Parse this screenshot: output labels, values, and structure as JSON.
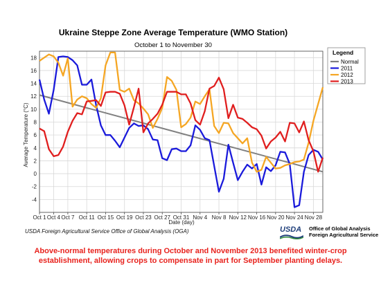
{
  "chart_data": {
    "type": "line",
    "title": "Ukraine Steppe Zone Average Temperature (WMO Station)",
    "subtitle": "October 1 to November 30",
    "xlabel": "Date (day)",
    "ylabel": "Average Temperature (°C)",
    "ylim": [
      -6,
      19
    ],
    "yticks": [
      "-4",
      "-2",
      "0",
      "2",
      "4",
      "6",
      "8",
      "10",
      "12",
      "14",
      "16",
      "18"
    ],
    "ytick_values": [
      -4,
      -2,
      0,
      2,
      4,
      6,
      8,
      10,
      12,
      14,
      16,
      18
    ],
    "x_tick_labels": [
      "Oct 1",
      "Oct 4",
      "Oct 7",
      "Oct 11",
      "Oct 15",
      "Oct 19",
      "Oct 23",
      "Oct 27",
      "Oct 31",
      "Nov 4",
      "Nov 8",
      "Nov 12",
      "Nov 16",
      "Nov 20",
      "Nov 24",
      "Nov 28"
    ],
    "x_tick_days": [
      1,
      4,
      7,
      11,
      15,
      19,
      23,
      27,
      31,
      35,
      39,
      43,
      47,
      51,
      55,
      59
    ],
    "grid": true,
    "legend_title": "Legend",
    "legend_position": "top-right",
    "series": [
      {
        "name": "Normal",
        "color": "#808080",
        "x": [
          1,
          61
        ],
        "y": [
          12.2,
          0.3
        ]
      },
      {
        "name": "2011",
        "color": "#1a1adb",
        "x": [
          1,
          2,
          3,
          4,
          5,
          6,
          7,
          8,
          9,
          10,
          11,
          12,
          13,
          14,
          15,
          16,
          17,
          18,
          19,
          20,
          21,
          22,
          23,
          24,
          25,
          26,
          27,
          28,
          29,
          30,
          31,
          32,
          33,
          34,
          35,
          36,
          37,
          38,
          39,
          40,
          41,
          42,
          43,
          44,
          45,
          46,
          47,
          48,
          49,
          50,
          51,
          52,
          53,
          54,
          55,
          56,
          57,
          58,
          59,
          60,
          61
        ],
        "y": [
          14.6,
          11.5,
          9.3,
          13.0,
          18.1,
          18.2,
          18.1,
          17.6,
          16.8,
          13.8,
          13.8,
          14.6,
          10.6,
          7.5,
          6.0,
          6.0,
          5.1,
          4.1,
          5.6,
          7.1,
          7.8,
          7.4,
          7.5,
          6.9,
          5.3,
          5.2,
          2.4,
          2.1,
          3.8,
          3.9,
          3.5,
          3.5,
          4.4,
          7.5,
          6.8,
          5.5,
          5.2,
          1.2,
          -2.8,
          -0.8,
          4.5,
          1.7,
          -1.0,
          0.3,
          1.4,
          0.8,
          1.5,
          -1.7,
          1.0,
          0.4,
          1.3,
          3.4,
          3.3,
          1.5,
          -5.2,
          -4.9,
          0.3,
          2.9,
          3.7,
          3.4,
          2.2
        ]
      },
      {
        "name": "2012",
        "color": "#f5a623",
        "x": [
          1,
          2,
          3,
          4,
          5,
          6,
          7,
          8,
          9,
          10,
          11,
          12,
          13,
          14,
          15,
          16,
          17,
          18,
          19,
          20,
          21,
          22,
          23,
          24,
          25,
          26,
          27,
          28,
          29,
          30,
          31,
          32,
          33,
          34,
          35,
          36,
          37,
          38,
          39,
          40,
          41,
          42,
          43,
          44,
          45,
          46,
          47,
          48,
          49,
          50,
          51,
          52,
          53,
          54,
          55,
          56,
          57,
          58,
          59,
          60,
          61
        ],
        "y": [
          17.5,
          18.0,
          18.5,
          18.2,
          17.2,
          15.2,
          17.9,
          10.4,
          11.5,
          12.0,
          11.7,
          10.8,
          10.2,
          11.7,
          16.8,
          18.8,
          18.8,
          13.0,
          12.7,
          13.2,
          11.4,
          10.9,
          10.1,
          9.2,
          7.1,
          8.5,
          10.2,
          15.0,
          14.4,
          13.0,
          7.2,
          7.7,
          8.7,
          11.2,
          10.8,
          12.0,
          13.1,
          7.4,
          6.3,
          7.9,
          7.8,
          6.3,
          5.5,
          4.7,
          5.5,
          1.7,
          0.3,
          0.6,
          2.6,
          1.7,
          0.8,
          0.9,
          1.3,
          1.5,
          1.8,
          1.9,
          2.2,
          4.8,
          8.2,
          10.8,
          13.4
        ]
      },
      {
        "name": "2013",
        "color": "#e01e1e",
        "x": [
          1,
          2,
          3,
          4,
          5,
          6,
          7,
          8,
          9,
          10,
          11,
          12,
          13,
          14,
          15,
          16,
          17,
          18,
          19,
          20,
          21,
          22,
          23,
          24,
          25,
          26,
          27,
          28,
          29,
          30,
          31,
          32,
          33,
          34,
          35,
          36,
          37,
          38,
          39,
          40,
          41,
          42,
          43,
          44,
          45,
          46,
          47,
          48,
          49,
          50,
          51,
          52,
          53,
          54,
          55,
          56,
          57,
          58,
          59,
          60,
          61
        ],
        "y": [
          7.0,
          6.6,
          3.8,
          2.7,
          2.9,
          4.2,
          6.5,
          8.2,
          9.4,
          9.2,
          11.2,
          11.3,
          11.4,
          10.5,
          12.6,
          12.7,
          12.7,
          12.4,
          10.6,
          7.6,
          10.3,
          13.2,
          6.4,
          7.8,
          8.5,
          9.3,
          10.7,
          12.7,
          12.7,
          12.7,
          12.3,
          12.3,
          10.9,
          8.3,
          7.6,
          9.7,
          13.2,
          13.6,
          14.9,
          13.1,
          8.6,
          10.7,
          8.7,
          8.5,
          7.9,
          7.2,
          6.9,
          5.9,
          3.9,
          5.0,
          5.6,
          6.5,
          5.0,
          7.9,
          7.8,
          6.4,
          8.1,
          5.2,
          3.5,
          0.3,
          2.5
        ]
      }
    ]
  },
  "source_text": "USDA Foreign Agricultural Service Office of Global Analysis (OGA)",
  "usda_logo_text": "USDA",
  "usda_office_line1": "Office of Global Analysis",
  "usda_office_line2": "Foreign Agricultural Service",
  "caption": "Above-normal temperatures during October and November 2013 benefited winter-crop establishment, allowing crops to compensate in part for September planting delays."
}
